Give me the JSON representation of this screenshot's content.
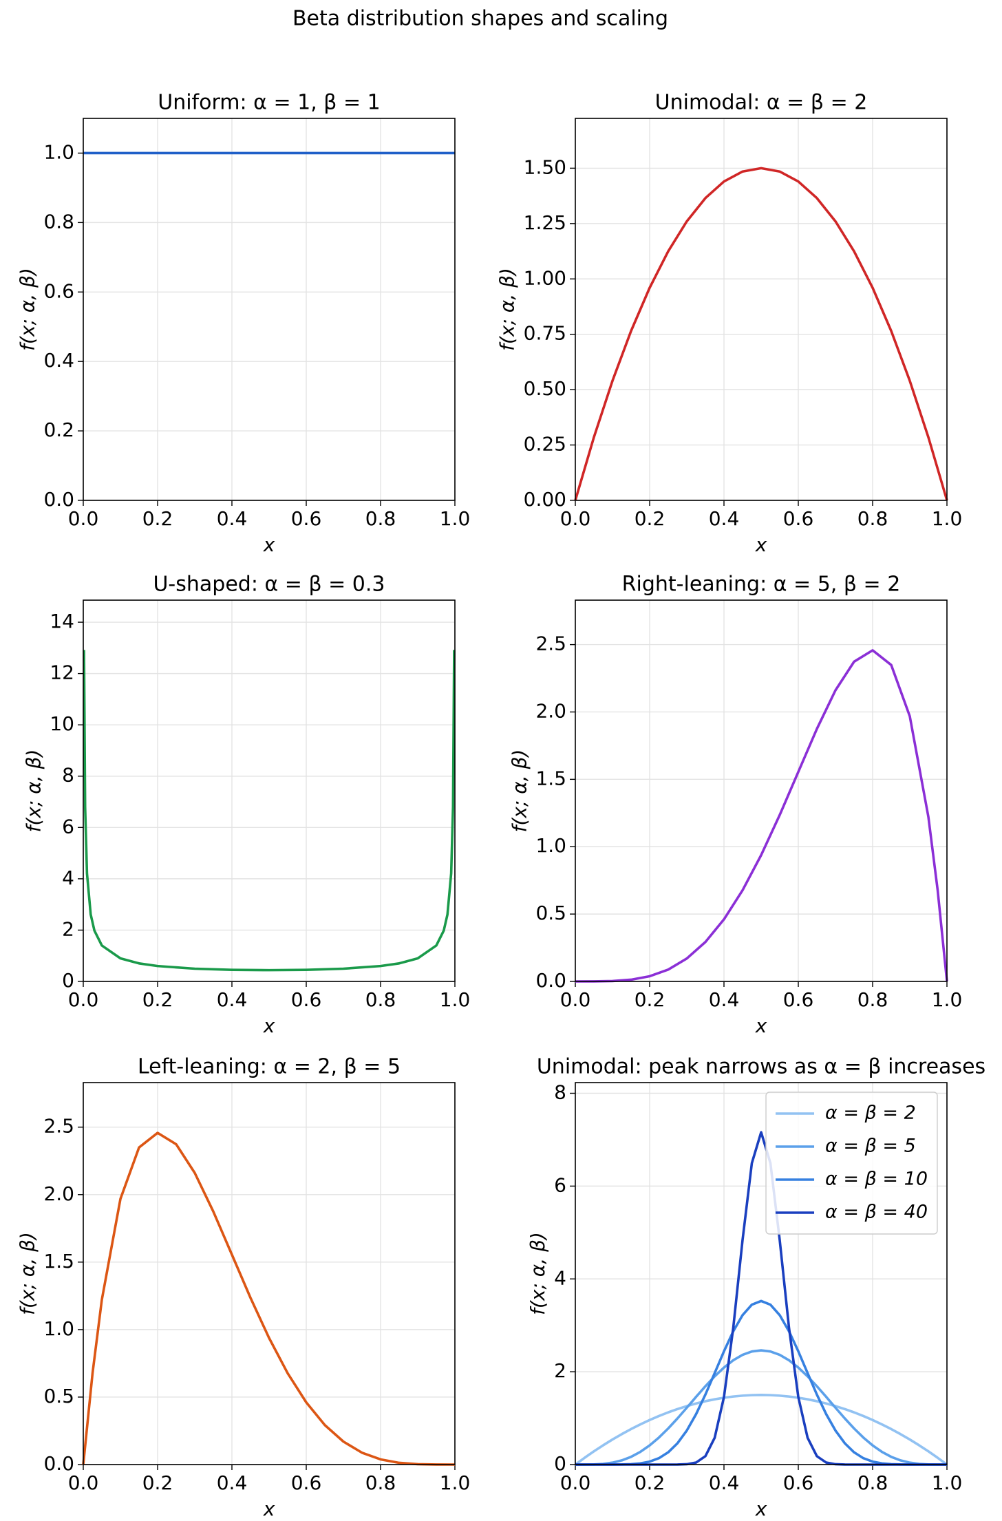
{
  "title": "Beta distribution shapes and scaling",
  "chart_data": [
    {
      "type": "line",
      "title": "Uniform: α = 1, β = 1",
      "x_label": "x",
      "y_label": "f(x; α, β)",
      "x": [
        0,
        1
      ],
      "values": [
        1,
        1
      ],
      "color": "#1f5fc8",
      "xlim": [
        0,
        1
      ],
      "ylim": [
        0,
        1.1
      ],
      "xticks": [
        {
          "value": 0,
          "label": "0.0"
        },
        {
          "value": 0.2,
          "label": "0.2"
        },
        {
          "value": 0.4,
          "label": "0.4"
        },
        {
          "value": 0.6,
          "label": "0.6"
        },
        {
          "value": 0.8,
          "label": "0.8"
        },
        {
          "value": 1,
          "label": "1.0"
        }
      ],
      "yticks": [
        {
          "value": 0,
          "label": "0.0"
        },
        {
          "value": 0.2,
          "label": "0.2"
        },
        {
          "value": 0.4,
          "label": "0.4"
        },
        {
          "value": 0.6,
          "label": "0.6"
        },
        {
          "value": 0.8,
          "label": "0.8"
        },
        {
          "value": 1,
          "label": "1.0"
        }
      ],
      "grid": true
    },
    {
      "type": "line",
      "title": "Unimodal: α = β = 2",
      "x_label": "x",
      "y_label": "f(x; α, β)",
      "x": [
        0,
        0.05,
        0.1,
        0.15,
        0.2,
        0.25,
        0.3,
        0.35,
        0.4,
        0.45,
        0.5,
        0.55,
        0.6,
        0.65,
        0.7,
        0.75,
        0.8,
        0.85,
        0.9,
        0.95,
        1
      ],
      "values": [
        0,
        0.285,
        0.54,
        0.765,
        0.96,
        1.125,
        1.26,
        1.365,
        1.44,
        1.485,
        1.5,
        1.485,
        1.44,
        1.365,
        1.26,
        1.125,
        0.96,
        0.765,
        0.54,
        0.285,
        0
      ],
      "color": "#d02626",
      "xlim": [
        0,
        1
      ],
      "ylim": [
        0,
        1.725
      ],
      "xticks": [
        {
          "value": 0,
          "label": "0.0"
        },
        {
          "value": 0.2,
          "label": "0.2"
        },
        {
          "value": 0.4,
          "label": "0.4"
        },
        {
          "value": 0.6,
          "label": "0.6"
        },
        {
          "value": 0.8,
          "label": "0.8"
        },
        {
          "value": 1,
          "label": "1.0"
        }
      ],
      "yticks": [
        {
          "value": 0,
          "label": "0.00"
        },
        {
          "value": 0.25,
          "label": "0.25"
        },
        {
          "value": 0.5,
          "label": "0.50"
        },
        {
          "value": 0.75,
          "label": "0.75"
        },
        {
          "value": 1,
          "label": "1.00"
        },
        {
          "value": 1.25,
          "label": "1.25"
        },
        {
          "value": 1.5,
          "label": "1.50"
        }
      ],
      "grid": true
    },
    {
      "type": "line",
      "title": "U-shaped: α = β = 0.3",
      "x_label": "x",
      "y_label": "f(x; α, β)",
      "x": [
        0.002,
        0.005,
        0.01,
        0.02,
        0.03,
        0.05,
        0.1,
        0.15,
        0.2,
        0.3,
        0.4,
        0.5,
        0.6,
        0.7,
        0.8,
        0.85,
        0.9,
        0.95,
        0.97,
        0.98,
        0.99,
        0.995,
        0.998
      ],
      "values": [
        12.92,
        6.81,
        4.21,
        2.61,
        1.979,
        1.4,
        0.898,
        0.703,
        0.6,
        0.496,
        0.452,
        0.439,
        0.452,
        0.496,
        0.6,
        0.703,
        0.898,
        1.4,
        1.979,
        2.61,
        4.21,
        6.81,
        12.92
      ],
      "color": "#1a9a4a",
      "xlim": [
        0,
        1
      ],
      "ylim": [
        0,
        14.86
      ],
      "xticks": [
        {
          "value": 0,
          "label": "0.0"
        },
        {
          "value": 0.2,
          "label": "0.2"
        },
        {
          "value": 0.4,
          "label": "0.4"
        },
        {
          "value": 0.6,
          "label": "0.6"
        },
        {
          "value": 0.8,
          "label": "0.8"
        },
        {
          "value": 1,
          "label": "1.0"
        }
      ],
      "yticks": [
        0,
        2,
        4,
        6,
        8,
        10,
        12,
        14
      ],
      "grid": true
    },
    {
      "type": "line",
      "title": "Right-leaning: α = 5, β = 2",
      "x_label": "x",
      "y_label": "f(x; α, β)",
      "x": [
        0,
        0.05,
        0.1,
        0.15,
        0.2,
        0.25,
        0.3,
        0.35,
        0.4,
        0.45,
        0.5,
        0.55,
        0.6,
        0.65,
        0.7,
        0.75,
        0.8,
        0.85,
        0.9,
        0.95,
        0.975,
        1
      ],
      "values": [
        0,
        0.0002,
        0.0027,
        0.0129,
        0.0384,
        0.0879,
        0.1701,
        0.2926,
        0.4608,
        0.6766,
        0.9375,
        1.2353,
        1.5552,
        1.8743,
        2.1609,
        2.373,
        2.4576,
        2.349,
        1.9683,
        1.2218,
        0.6778,
        0
      ],
      "color": "#8b2fd6",
      "xlim": [
        0,
        1
      ],
      "ylim": [
        0,
        2.83
      ],
      "xticks": [
        {
          "value": 0,
          "label": "0.0"
        },
        {
          "value": 0.2,
          "label": "0.2"
        },
        {
          "value": 0.4,
          "label": "0.4"
        },
        {
          "value": 0.6,
          "label": "0.6"
        },
        {
          "value": 0.8,
          "label": "0.8"
        },
        {
          "value": 1,
          "label": "1.0"
        }
      ],
      "yticks": [
        {
          "value": 0,
          "label": "0.0"
        },
        {
          "value": 0.5,
          "label": "0.5"
        },
        {
          "value": 1,
          "label": "1.0"
        },
        {
          "value": 1.5,
          "label": "1.5"
        },
        {
          "value": 2,
          "label": "2.0"
        },
        {
          "value": 2.5,
          "label": "2.5"
        }
      ],
      "grid": true
    },
    {
      "type": "line",
      "title": "Left-leaning: α = 2, β = 5",
      "x_label": "x",
      "y_label": "f(x; α, β)",
      "x": [
        0,
        0.025,
        0.05,
        0.1,
        0.15,
        0.2,
        0.25,
        0.3,
        0.35,
        0.4,
        0.45,
        0.5,
        0.55,
        0.6,
        0.65,
        0.7,
        0.75,
        0.8,
        0.85,
        0.9,
        0.95,
        1
      ],
      "values": [
        0,
        0.6778,
        1.2218,
        1.9683,
        2.349,
        2.4576,
        2.373,
        2.1609,
        1.8743,
        1.5552,
        1.2353,
        0.9375,
        0.6766,
        0.4608,
        0.2926,
        0.1701,
        0.0879,
        0.0384,
        0.0129,
        0.0027,
        0.0002,
        0
      ],
      "color": "#dc5614",
      "xlim": [
        0,
        1
      ],
      "ylim": [
        0,
        2.83
      ],
      "xticks": [
        {
          "value": 0,
          "label": "0.0"
        },
        {
          "value": 0.2,
          "label": "0.2"
        },
        {
          "value": 0.4,
          "label": "0.4"
        },
        {
          "value": 0.6,
          "label": "0.6"
        },
        {
          "value": 0.8,
          "label": "0.8"
        },
        {
          "value": 1,
          "label": "1.0"
        }
      ],
      "yticks": [
        {
          "value": 0,
          "label": "0.0"
        },
        {
          "value": 0.5,
          "label": "0.5"
        },
        {
          "value": 1,
          "label": "1.0"
        },
        {
          "value": 1.5,
          "label": "1.5"
        },
        {
          "value": 2,
          "label": "2.0"
        },
        {
          "value": 2.5,
          "label": "2.5"
        }
      ],
      "grid": true
    },
    {
      "type": "line",
      "title": "Unimodal: peak narrows as α = β increases",
      "x_label": "x",
      "y_label": "f(x; α, β)",
      "x": [
        0,
        0.025,
        0.05,
        0.075,
        0.1,
        0.125,
        0.15,
        0.175,
        0.2,
        0.225,
        0.25,
        0.275,
        0.3,
        0.325,
        0.35,
        0.375,
        0.4,
        0.425,
        0.45,
        0.475,
        0.5,
        0.525,
        0.55,
        0.575,
        0.6,
        0.625,
        0.65,
        0.675,
        0.7,
        0.725,
        0.75,
        0.775,
        0.8,
        0.825,
        0.85,
        0.875,
        0.9,
        0.925,
        0.95,
        0.975,
        1
      ],
      "series": [
        {
          "name": "α = β = 2",
          "color": "#92c2f2",
          "values": [
            0,
            0.146,
            0.285,
            0.416,
            0.54,
            0.656,
            0.765,
            0.866,
            0.96,
            1.046,
            1.125,
            1.196,
            1.26,
            1.316,
            1.365,
            1.406,
            1.44,
            1.466,
            1.485,
            1.496,
            1.5,
            1.496,
            1.485,
            1.466,
            1.44,
            1.406,
            1.365,
            1.316,
            1.26,
            1.196,
            1.125,
            1.046,
            0.96,
            0.866,
            0.765,
            0.656,
            0.54,
            0.416,
            0.285,
            0.146,
            0
          ]
        },
        {
          "name": "α = β = 5",
          "color": "#5ba0ea",
          "values": [
            0,
            0.0002,
            0.0032,
            0.0146,
            0.0413,
            0.0902,
            0.1665,
            0.2737,
            0.4129,
            0.5825,
            0.7787,
            0.9955,
            1.2253,
            1.4591,
            1.6876,
            1.9011,
            2.0903,
            2.2469,
            2.364,
            2.4364,
            2.461,
            2.4364,
            2.364,
            2.2469,
            2.0903,
            1.9011,
            1.6876,
            1.4591,
            1.2253,
            0.9955,
            0.7787,
            0.5825,
            0.4129,
            0.2737,
            0.1665,
            0.0902,
            0.0413,
            0.0146,
            0.0032,
            0.0002,
            0
          ]
        },
        {
          "name": "α = β = 10",
          "color": "#3680e0",
          "values": [
            0,
            0,
            0,
            0,
            0.0004,
            0.0021,
            0.0082,
            0.0252,
            0.0635,
            0.1376,
            0.2646,
            0.4599,
            0.7338,
            1.0871,
            1.508,
            1.9713,
            2.4405,
            2.8712,
            3.2192,
            3.4455,
            3.524,
            3.4455,
            3.2192,
            2.8712,
            2.4405,
            1.9713,
            1.508,
            1.0871,
            0.7338,
            0.4599,
            0.2646,
            0.1376,
            0.0635,
            0.0252,
            0.0082,
            0.0021,
            0.0004,
            0,
            0,
            0,
            0
          ]
        },
        {
          "name": "α = β = 40",
          "color": "#1a3fbf",
          "values": [
            0,
            0,
            0,
            0,
            0,
            0,
            0,
            0,
            0,
            0,
            0.0001,
            0.0011,
            0.008,
            0.0438,
            0.1809,
            0.5777,
            1.457,
            2.947,
            4.838,
            6.494,
            7.16,
            6.494,
            4.838,
            2.947,
            1.457,
            0.5777,
            0.1809,
            0.0438,
            0.008,
            0.0011,
            0.0001,
            0,
            0,
            0,
            0,
            0,
            0,
            0,
            0,
            0,
            0
          ]
        }
      ],
      "legend": "upper right",
      "xlim": [
        0,
        1
      ],
      "ylim": [
        0,
        8.23
      ],
      "xticks": [
        {
          "value": 0,
          "label": "0.0"
        },
        {
          "value": 0.2,
          "label": "0.2"
        },
        {
          "value": 0.4,
          "label": "0.4"
        },
        {
          "value": 0.6,
          "label": "0.6"
        },
        {
          "value": 0.8,
          "label": "0.8"
        },
        {
          "value": 1,
          "label": "1.0"
        }
      ],
      "yticks": [
        0,
        2,
        4,
        6,
        8
      ],
      "grid": true
    }
  ]
}
